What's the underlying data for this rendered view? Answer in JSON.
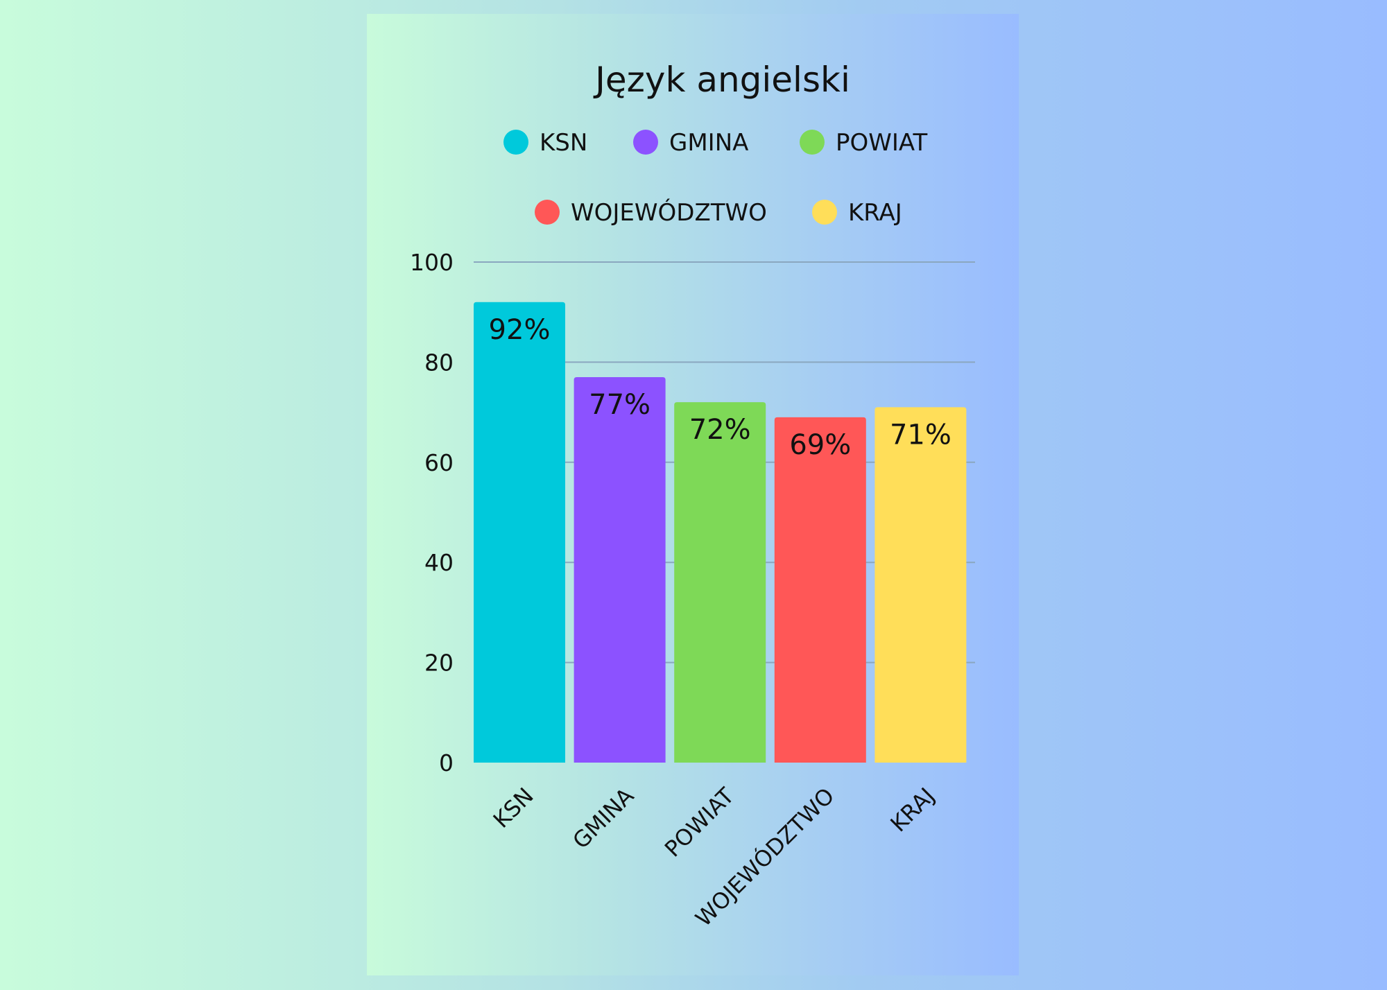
{
  "chart_data": {
    "type": "bar",
    "title": "Język angielski",
    "categories": [
      "KSN",
      "GMINA",
      "POWIAT",
      "WOJEWÓDZTWO",
      "KRAJ"
    ],
    "values": [
      92,
      77,
      72,
      69,
      71
    ],
    "data_labels": [
      "92%",
      "77%",
      "72%",
      "69%",
      "71%"
    ],
    "colors": [
      "#00c9db",
      "#8c52ff",
      "#7ed957",
      "#ff5757",
      "#ffde59"
    ],
    "legend": [
      "KSN",
      "GMINA",
      "POWIAT",
      "WOJEWÓDZTWO",
      "KRAJ"
    ],
    "legend_position": "top",
    "xlabel": "",
    "ylabel": "",
    "ylim": [
      0,
      100
    ],
    "yticks": [
      "0",
      "20",
      "40",
      "60",
      "80",
      "100"
    ],
    "grid": true
  }
}
